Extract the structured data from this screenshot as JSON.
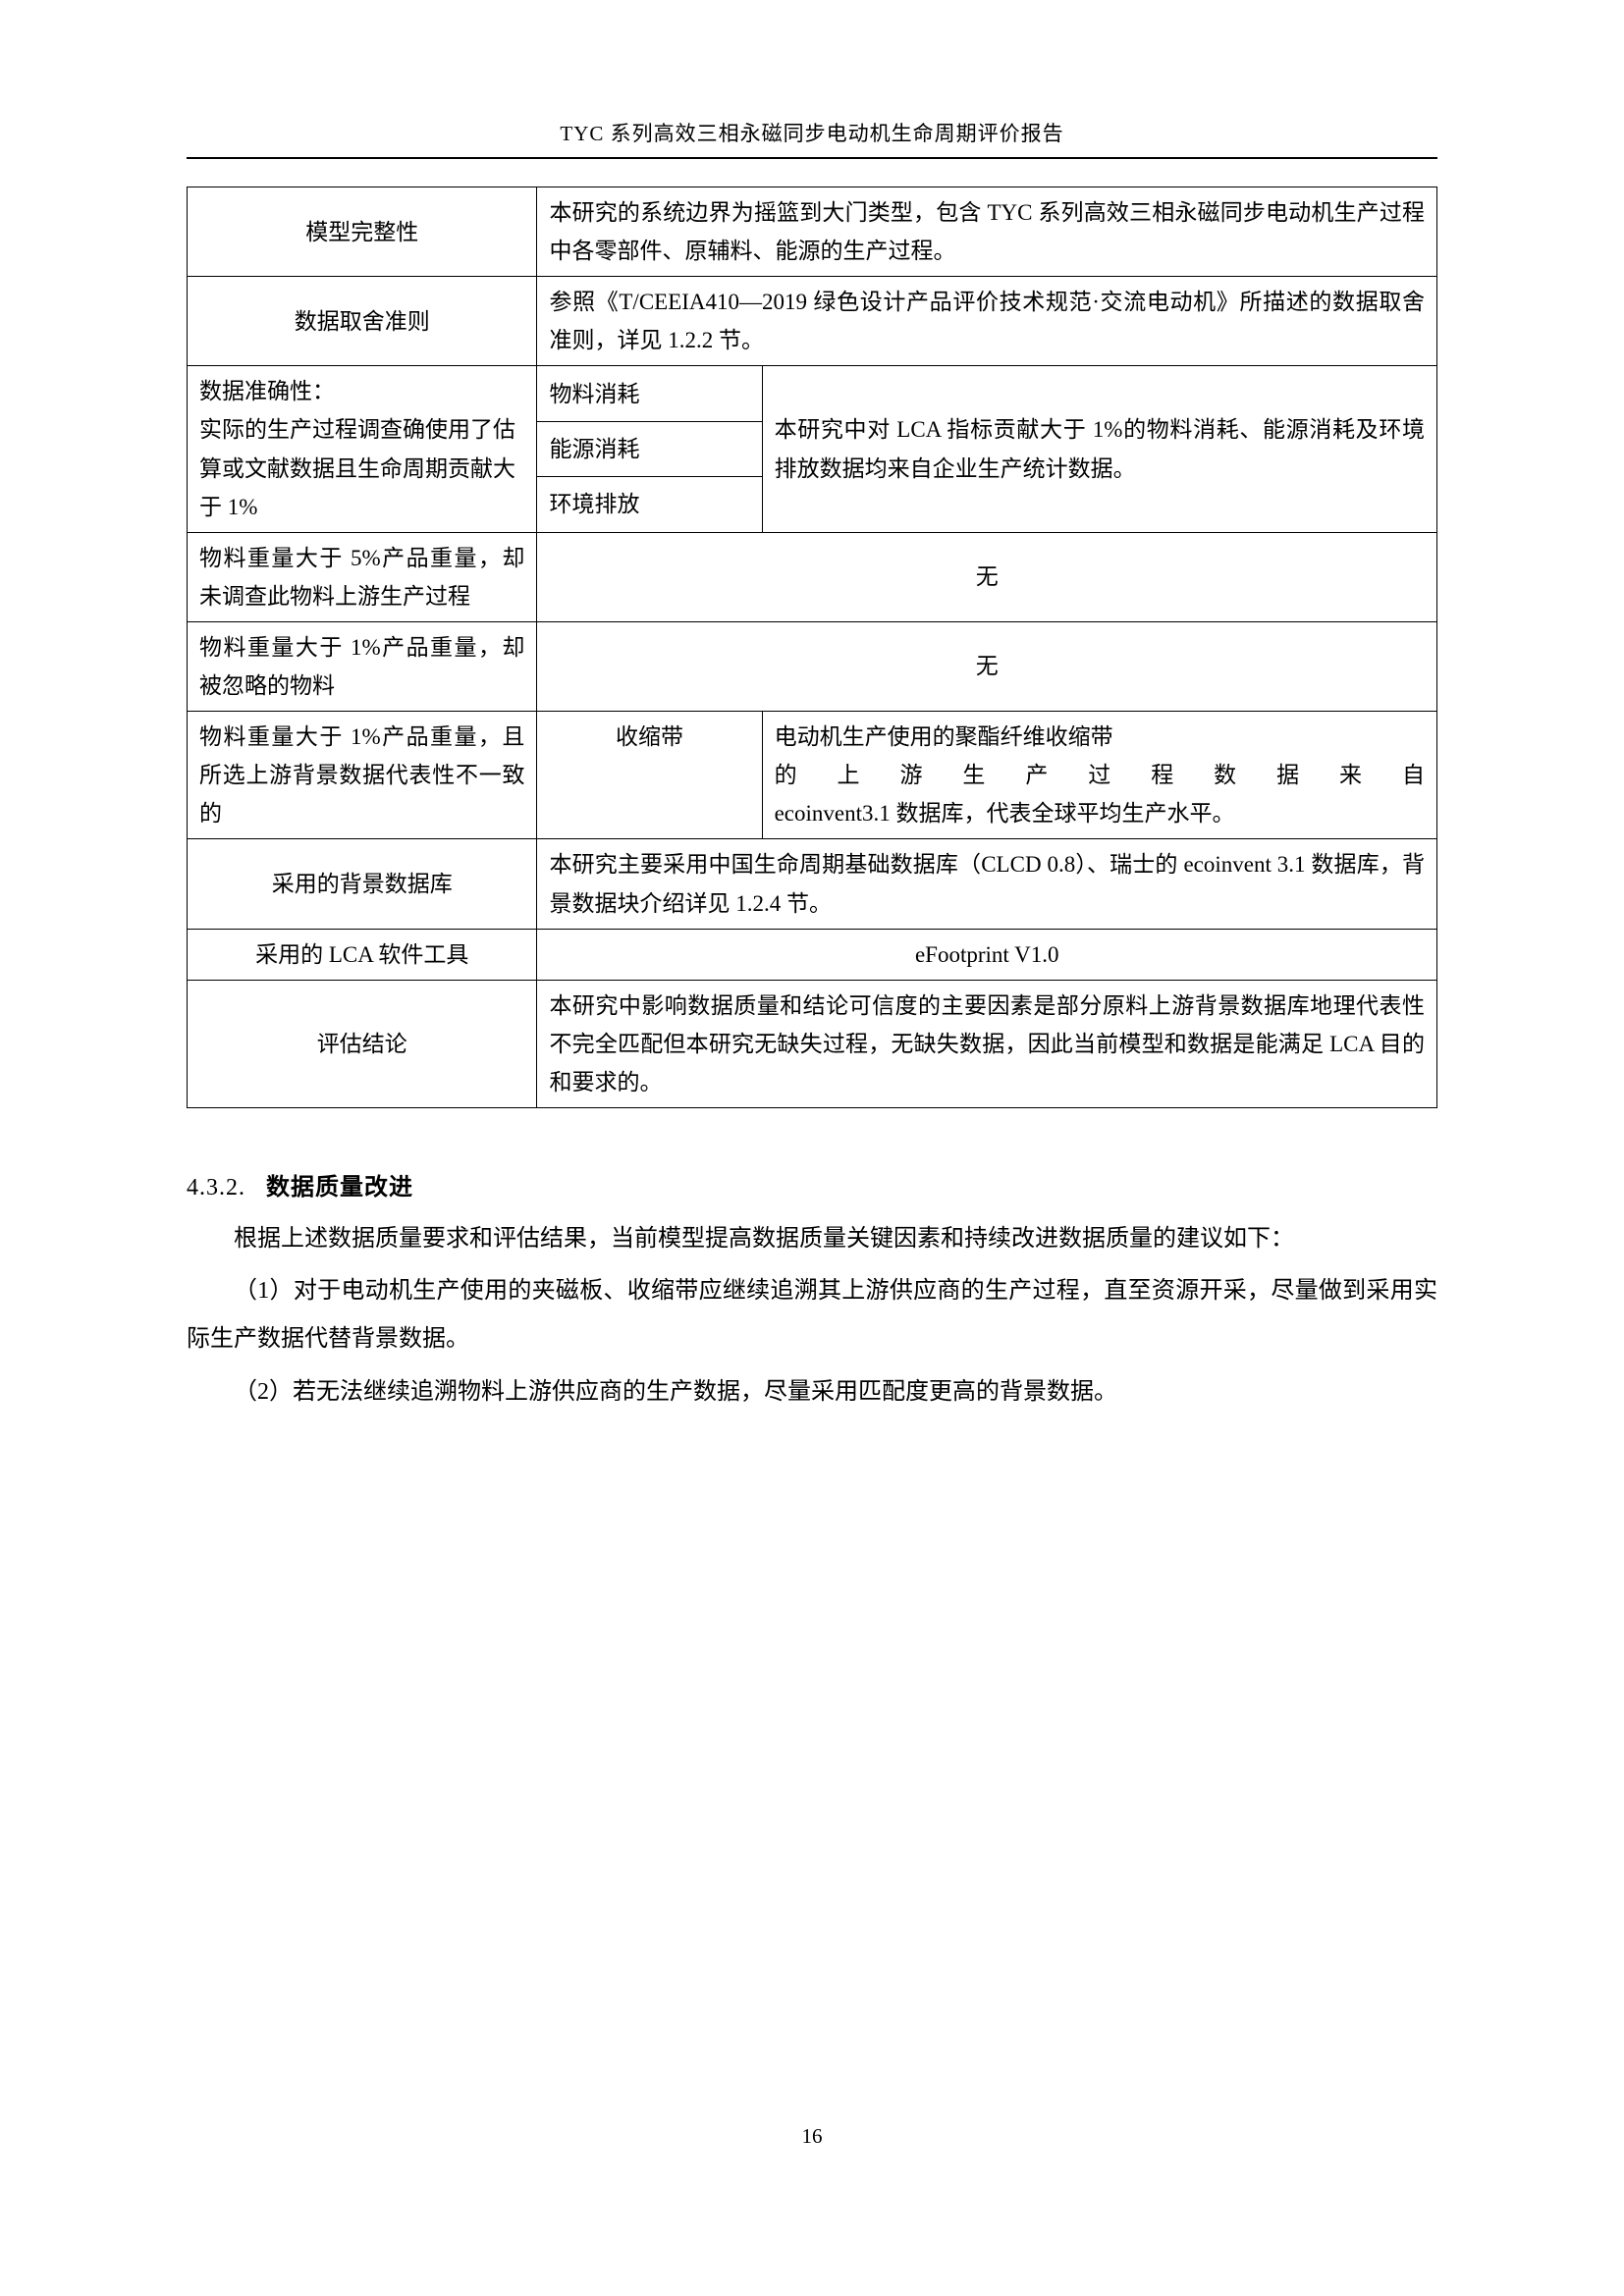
{
  "header": "TYC 系列高效三相永磁同步电动机生命周期评价报告",
  "page_number": "16",
  "table": {
    "r1c1": "模型完整性",
    "r1c2": "本研究的系统边界为摇篮到大门类型，包含 TYC 系列高效三相永磁同步电动机生产过程中各零部件、原辅料、能源的生产过程。",
    "r2c1": "数据取舍准则",
    "r2c2": "参照《T/CEEIA410—2019 绿色设计产品评价技术规范·交流电动机》所描述的数据取舍准则，详见 1.2.2 节。",
    "r3c1_l1": "数据准确性：",
    "r3c1_l2": "实际的生产过程调查确使用了估算或文献数据且生命周期贡献大于 1%",
    "r3c2a": "物料消耗",
    "r3c2b": "能源消耗",
    "r3c2c": "环境排放",
    "r3c3": "本研究中对 LCA 指标贡献大于 1%的物料消耗、能源消耗及环境排放数据均来自企业生产统计数据。",
    "r4c1": "物料重量大于 5%产品重量，却未调查此物料上游生产过程",
    "r4c2": "无",
    "r5c1": "物料重量大于 1%产品重量，却被忽略的物料",
    "r5c2": "无",
    "r6c1": "物料重量大于 1%产品重量，且所选上游背景数据代表性不一致的",
    "r6c2": "收缩带",
    "r6c3_a": "电动机生产使用的聚酯纤维收缩带",
    "r6c3_b": "的上游生产过程数据来自",
    "r6c3_c": "ecoinvent3.1 数据库，代表全球平均生产水平。",
    "r7c1": "采用的背景数据库",
    "r7c2": "本研究主要采用中国生命周期基础数据库（CLCD 0.8）、瑞士的 ecoinvent 3.1 数据库，背景数据块介绍详见 1.2.4 节。",
    "r8c1": "采用的 LCA 软件工具",
    "r8c2": "eFootprint V1.0",
    "r9c1": "评估结论",
    "r9c2": "本研究中影响数据质量和结论可信度的主要因素是部分原料上游背景数据库地理代表性不完全匹配但本研究无缺失过程，无缺失数据，因此当前模型和数据是能满足 LCA 目的和要求的。"
  },
  "section": {
    "num": "4.3.2.",
    "title": "数据质量改进",
    "p1": "根据上述数据质量要求和评估结果，当前模型提高数据质量关键因素和持续改进数据质量的建议如下：",
    "p2": "（1）对于电动机生产使用的夹磁板、收缩带应继续追溯其上游供应商的生产过程，直至资源开采，尽量做到采用实际生产数据代替背景数据。",
    "p3": "（2）若无法继续追溯物料上游供应商的生产数据，尽量采用匹配度更高的背景数据。"
  }
}
